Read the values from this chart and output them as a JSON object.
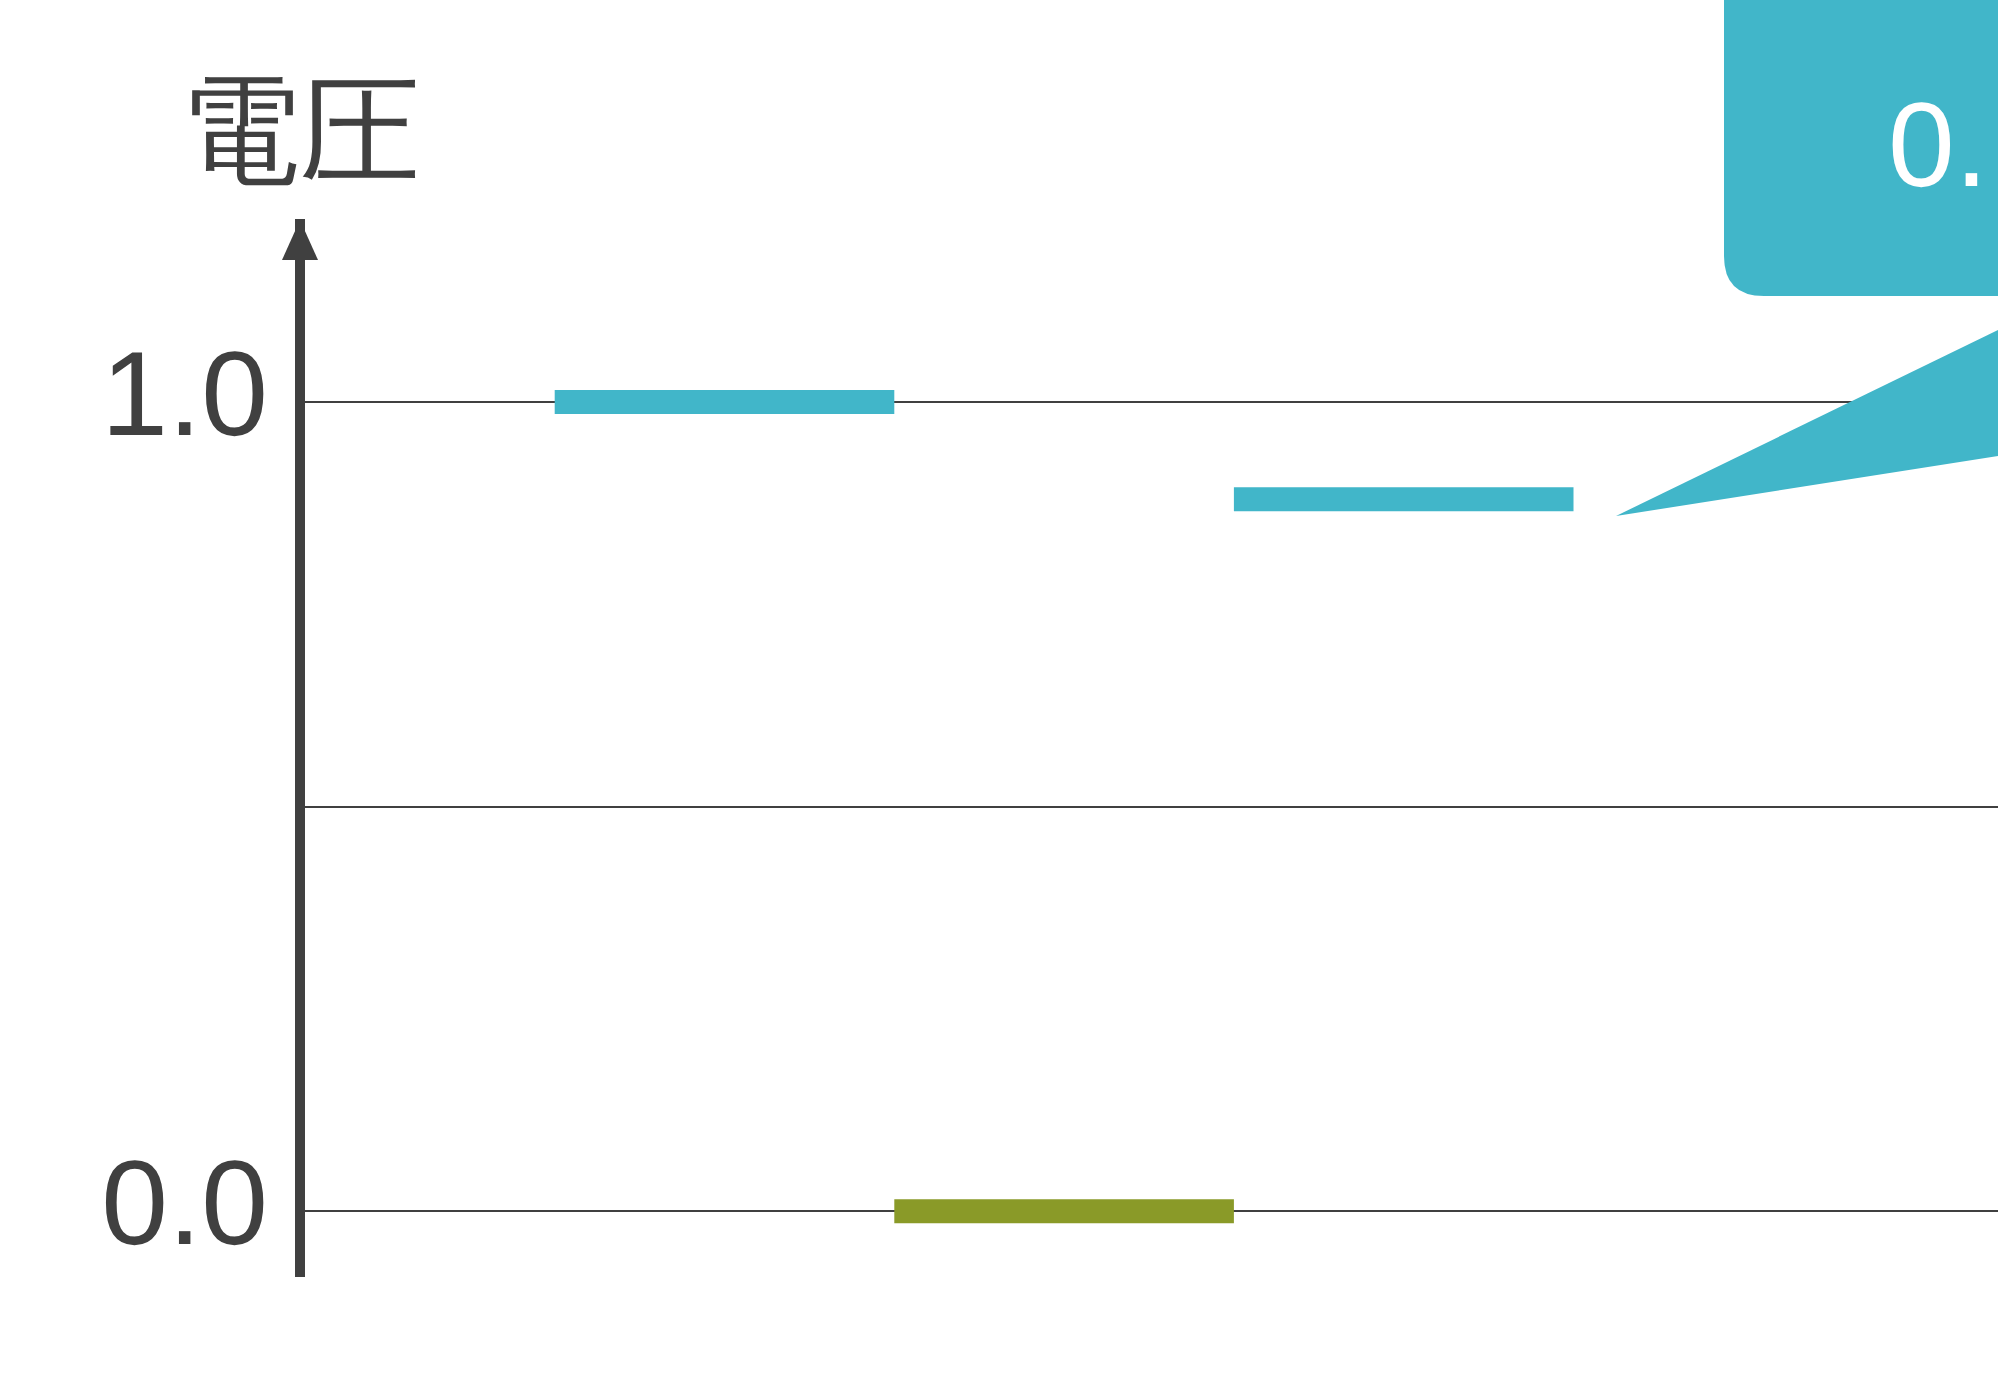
{
  "chart_data": {
    "type": "line",
    "ylabel": "電圧",
    "categories": [
      null,
      null,
      null,
      null,
      null,
      null,
      null,
      null,
      null,
      null
    ],
    "series": [
      {
        "color": "#41b6c9",
        "values": [
          null,
          1.0,
          1.0,
          1.0,
          null,
          null,
          null,
          null,
          null,
          null
        ]
      },
      {
        "color": "#8a9a28",
        "values": [
          null,
          null,
          null,
          0.0,
          0.0,
          0.0,
          null,
          null,
          null,
          null
        ]
      },
      {
        "color": "#41b6c9",
        "values": [
          null,
          null,
          null,
          null,
          null,
          0.88,
          0.88,
          0.88,
          null,
          null
        ]
      }
    ],
    "ylim": [
      -0.08,
      1.22
    ],
    "yticks": [
      {
        "value": 0,
        "label": "0.0"
      },
      {
        "value": 0.5,
        "label": null
      },
      {
        "value": 1,
        "label": "1.0"
      }
    ],
    "grid": "y",
    "legend": false,
    "marker": "none",
    "line_style": "solid",
    "annotations": [
      "0."
    ]
  }
}
